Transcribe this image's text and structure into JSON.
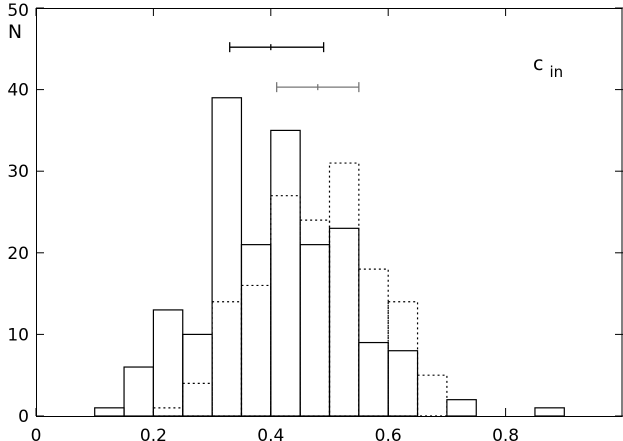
{
  "chart_data": {
    "type": "bar",
    "title": "",
    "xlabel": "",
    "ylabel": "N",
    "annotation": "c",
    "annotation_sub": "in",
    "xlim": [
      0,
      1
    ],
    "ylim": [
      0,
      50
    ],
    "x_ticks": [
      0,
      0.2,
      0.4,
      0.6,
      0.8
    ],
    "x_tick_labels": [
      "0",
      "0.2",
      "0.4",
      "0.6",
      "0.8"
    ],
    "y_ticks": [
      0,
      10,
      20,
      30,
      40,
      50
    ],
    "y_tick_labels": [
      "0",
      "10",
      "20",
      "30",
      "40",
      "50"
    ],
    "bin_width": 0.05,
    "grid": false,
    "series": [
      {
        "style": "solid",
        "color": "#000000",
        "bins": [
          {
            "x": 0.1,
            "count": 1
          },
          {
            "x": 0.15,
            "count": 6
          },
          {
            "x": 0.2,
            "count": 13
          },
          {
            "x": 0.25,
            "count": 10
          },
          {
            "x": 0.3,
            "count": 39
          },
          {
            "x": 0.35,
            "count": 21
          },
          {
            "x": 0.4,
            "count": 35
          },
          {
            "x": 0.45,
            "count": 21
          },
          {
            "x": 0.5,
            "count": 23
          },
          {
            "x": 0.55,
            "count": 9
          },
          {
            "x": 0.6,
            "count": 8
          },
          {
            "x": 0.7,
            "count": 2
          },
          {
            "x": 0.85,
            "count": 1
          }
        ]
      },
      {
        "style": "dotted",
        "color": "#000000",
        "bins": [
          {
            "x": 0.2,
            "count": 1
          },
          {
            "x": 0.25,
            "count": 4
          },
          {
            "x": 0.3,
            "count": 14
          },
          {
            "x": 0.35,
            "count": 16
          },
          {
            "x": 0.4,
            "count": 27
          },
          {
            "x": 0.45,
            "count": 24
          },
          {
            "x": 0.5,
            "count": 31
          },
          {
            "x": 0.55,
            "count": 18
          },
          {
            "x": 0.6,
            "count": 14
          },
          {
            "x": 0.65,
            "count": 5
          }
        ]
      }
    ],
    "error_bars": [
      {
        "y": 45.2,
        "low": 0.33,
        "center": 0.4,
        "high": 0.49,
        "color": "#000000"
      },
      {
        "y": 40.3,
        "low": 0.41,
        "center": 0.48,
        "high": 0.55,
        "color": "#777777"
      }
    ]
  }
}
